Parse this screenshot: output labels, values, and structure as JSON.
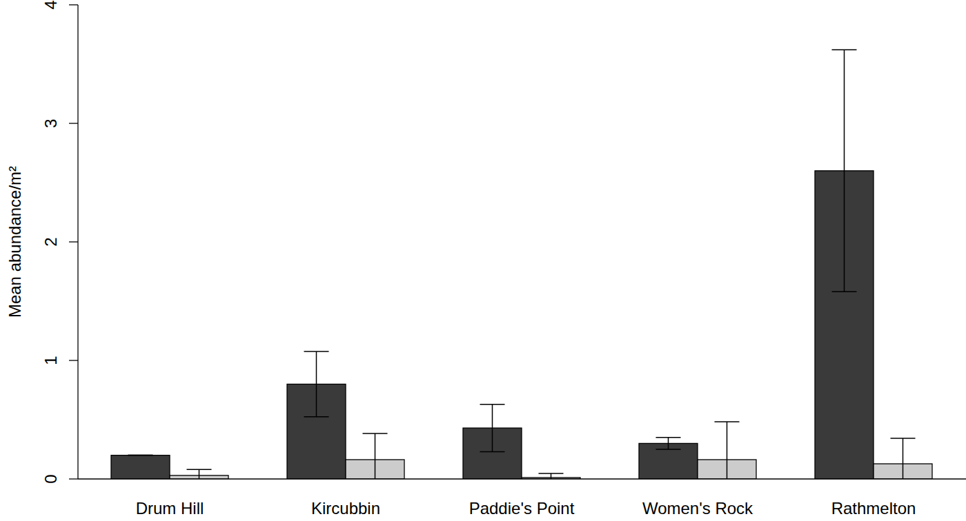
{
  "chart_data": {
    "type": "bar",
    "y_label": "Mean abundance/m²",
    "categories": [
      "Drum Hill",
      "Kircubbin",
      "Paddie's Point",
      "Women's Rock",
      "Rathmelton"
    ],
    "series": [
      {
        "color": "#3a3a3a",
        "values": [
          0.2,
          0.8,
          0.43,
          0.3,
          2.6
        ],
        "errors": [
          0,
          0.275,
          0.2,
          0.05,
          1.02
        ]
      },
      {
        "color": "#cccccc",
        "values": [
          0.03,
          0.163,
          0.012,
          0.163,
          0.128
        ],
        "errors": [
          0.05,
          0.22,
          0.035,
          0.32,
          0.215
        ]
      }
    ],
    "ylim": [
      0,
      4
    ],
    "yticks": [
      0,
      1,
      2,
      3,
      4
    ],
    "grid": false
  }
}
